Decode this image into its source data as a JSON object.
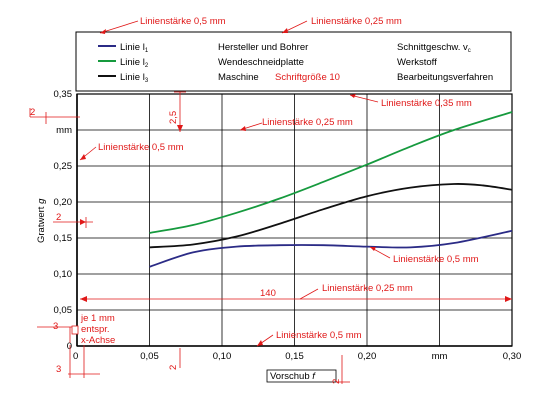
{
  "colors": {
    "annotation": "#e01818",
    "blue_line": "#2b2b86",
    "green_line": "#169a3e",
    "black_line": "#111111",
    "grid": "#000000"
  },
  "legend": {
    "rows": [
      {
        "label_prefix": "Linie l",
        "subscript": "1",
        "color_key": "blue_line",
        "col2": "Hersteller und Bohrer",
        "col3": "Schnittgeschw. v",
        "col3_sub": "c"
      },
      {
        "label_prefix": "Linie l",
        "subscript": "2",
        "color_key": "green_line",
        "col2": "Wendeschneidplatte",
        "col3": "Werkstoff",
        "col3_sub": ""
      },
      {
        "label_prefix": "Linie l",
        "subscript": "3",
        "color_key": "black_line",
        "col2": "Maschine",
        "col2_red": "Schriftgröße 10",
        "col3": "Bearbeitungsverfahren",
        "col3_sub": ""
      }
    ]
  },
  "annotations": {
    "top_left": "Linienstärke 0,5 mm",
    "top_right": "Linienstärke 0,25 mm",
    "right_035": "Linienstärke 0,35 mm",
    "inner_025": "Linienstärke 0,25 mm",
    "left_05": "Linienstärke 0,5 mm",
    "blue_05": "Linienstärke 0,5 mm",
    "dim_140": "140",
    "dim_140_note": "Linienstärke 0,25 mm",
    "bottom_05": "Linienstärke 0,5 mm",
    "je1mm_line1": "je 1 mm",
    "je1mm_line2": "entspr.",
    "je1mm_line3": "x-Achse",
    "dim_2_top": "2",
    "dim_2_mid": "2",
    "dim_25": "2,5",
    "dim_3_left": "3",
    "dim_3_bottom": "3",
    "dim_2_bottom_left": "2",
    "dim_2_bottom_right": "2"
  },
  "chart_data": {
    "type": "line",
    "xlabel_prefix": "Vorschub",
    "xlabel_symbol": "f",
    "ylabel_prefix": "Gratwert",
    "ylabel_symbol": "g",
    "xlim": [
      0,
      0.3
    ],
    "ylim": [
      0,
      0.35
    ],
    "x_ticks": [
      "0",
      "0,05",
      "0,10",
      "0,15",
      "0,20",
      "mm",
      "0,30"
    ],
    "y_ticks": [
      "0",
      "0,05",
      "0,10",
      "0,15",
      "0,20",
      "0,25",
      "mm",
      "0,35"
    ],
    "series": [
      {
        "name": "Linie l1",
        "color_key": "blue_line",
        "x": [
          0.05,
          0.08,
          0.11,
          0.14,
          0.17,
          0.2,
          0.23,
          0.26,
          0.3
        ],
        "y": [
          0.11,
          0.13,
          0.138,
          0.14,
          0.14,
          0.138,
          0.137,
          0.143,
          0.16
        ]
      },
      {
        "name": "Linie l2",
        "color_key": "green_line",
        "x": [
          0.05,
          0.08,
          0.11,
          0.14,
          0.17,
          0.2,
          0.23,
          0.26,
          0.3
        ],
        "y": [
          0.157,
          0.168,
          0.185,
          0.205,
          0.228,
          0.252,
          0.277,
          0.3,
          0.325
        ]
      },
      {
        "name": "Linie l3",
        "color_key": "black_line",
        "x": [
          0.05,
          0.08,
          0.11,
          0.14,
          0.17,
          0.2,
          0.23,
          0.26,
          0.28,
          0.3
        ],
        "y": [
          0.137,
          0.141,
          0.152,
          0.17,
          0.19,
          0.208,
          0.22,
          0.225,
          0.223,
          0.217
        ]
      }
    ]
  }
}
